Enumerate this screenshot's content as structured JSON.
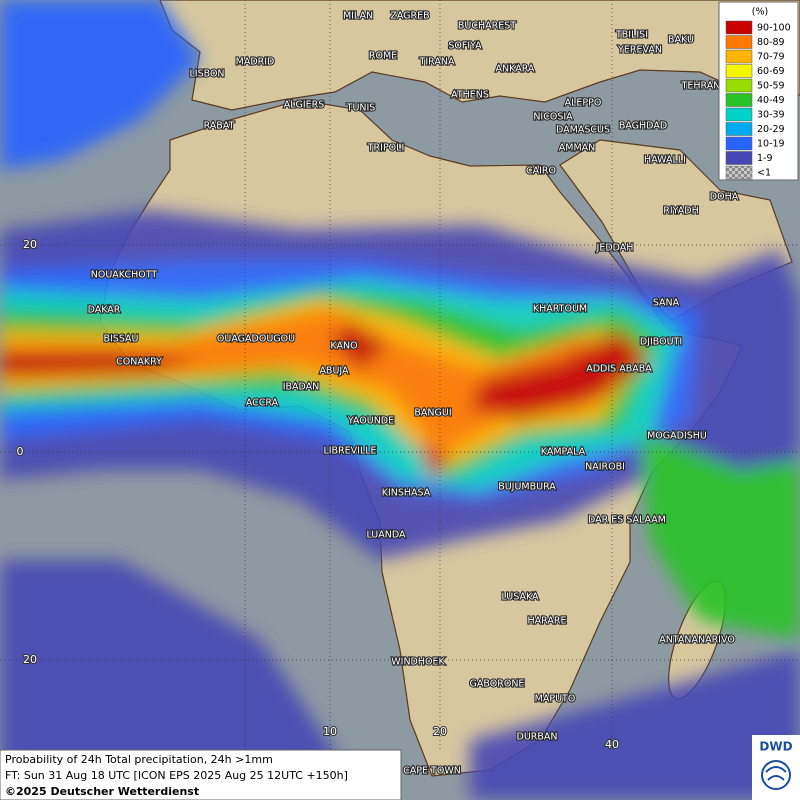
{
  "map": {
    "legend": {
      "title": "(%)",
      "entries": [
        {
          "label": "90-100",
          "color": "#c80000"
        },
        {
          "label": "80-89",
          "color": "#ff7800"
        },
        {
          "label": "70-79",
          "color": "#ffb400"
        },
        {
          "label": "60-69",
          "color": "#f5f500"
        },
        {
          "label": "50-59",
          "color": "#96dc00"
        },
        {
          "label": "40-49",
          "color": "#28c328"
        },
        {
          "label": "30-39",
          "color": "#00d2c8"
        },
        {
          "label": "20-29",
          "color": "#00aaf0"
        },
        {
          "label": "10-19",
          "color": "#2864ff"
        },
        {
          "label": "1-9",
          "color": "#4646b4"
        },
        {
          "label": "<1",
          "color": "#c8c8c8"
        }
      ]
    },
    "cities": [
      "MILAN",
      "ZAGREB",
      "BUCHAREST",
      "TBILISI",
      "BAKU",
      "MADRID",
      "ROME",
      "SOFIYA",
      "YEREVAN",
      "LISBON",
      "TIRANA",
      "ANKARA",
      "TEHRAN",
      "ATHENS",
      "ALGIERS",
      "TUNIS",
      "ALEPPO",
      "RABAT",
      "NICOSIA",
      "BAGHDAD",
      "DAMASCUS",
      "TRIPOLI",
      "AMMAN",
      "HAWALLI",
      "CAIRO",
      "DOHA",
      "RIYADH",
      "JEDDAH",
      "NOUAKCHOTT",
      "KHARTOUM",
      "SANA",
      "DAKAR",
      "BISSAU",
      "OUAGADOUGOU",
      "KANO",
      "DJIBOUTI",
      "CONAKRY",
      "ABUJA",
      "ADDIS ABABA",
      "IBADAN",
      "ACCRA",
      "YAOUNDE",
      "BANGUI",
      "MOGADISHU",
      "LIBREVILLE",
      "KAMPALA",
      "NAIROBI",
      "KINSHASA",
      "BUJUMBURA",
      "DAR ES SALAAM",
      "LUANDA",
      "LUSAKA",
      "HARARE",
      "ANTANANARIVO",
      "WINDHOEK",
      "GABORONE",
      "MAPUTO",
      "DURBAN",
      "CAPE TOWN"
    ],
    "grid_labels": [
      "20",
      "0",
      "20",
      "10",
      "20",
      "40"
    ],
    "caption": [
      "Probability of 24h Total precipitation, 24h >1mm",
      "FT: Sun 31 Aug 18 UTC [ICON EPS 2025 Aug 25 12UTC +150h]",
      "©2025 Deutscher Wetterdienst"
    ],
    "logo": "DWD"
  }
}
